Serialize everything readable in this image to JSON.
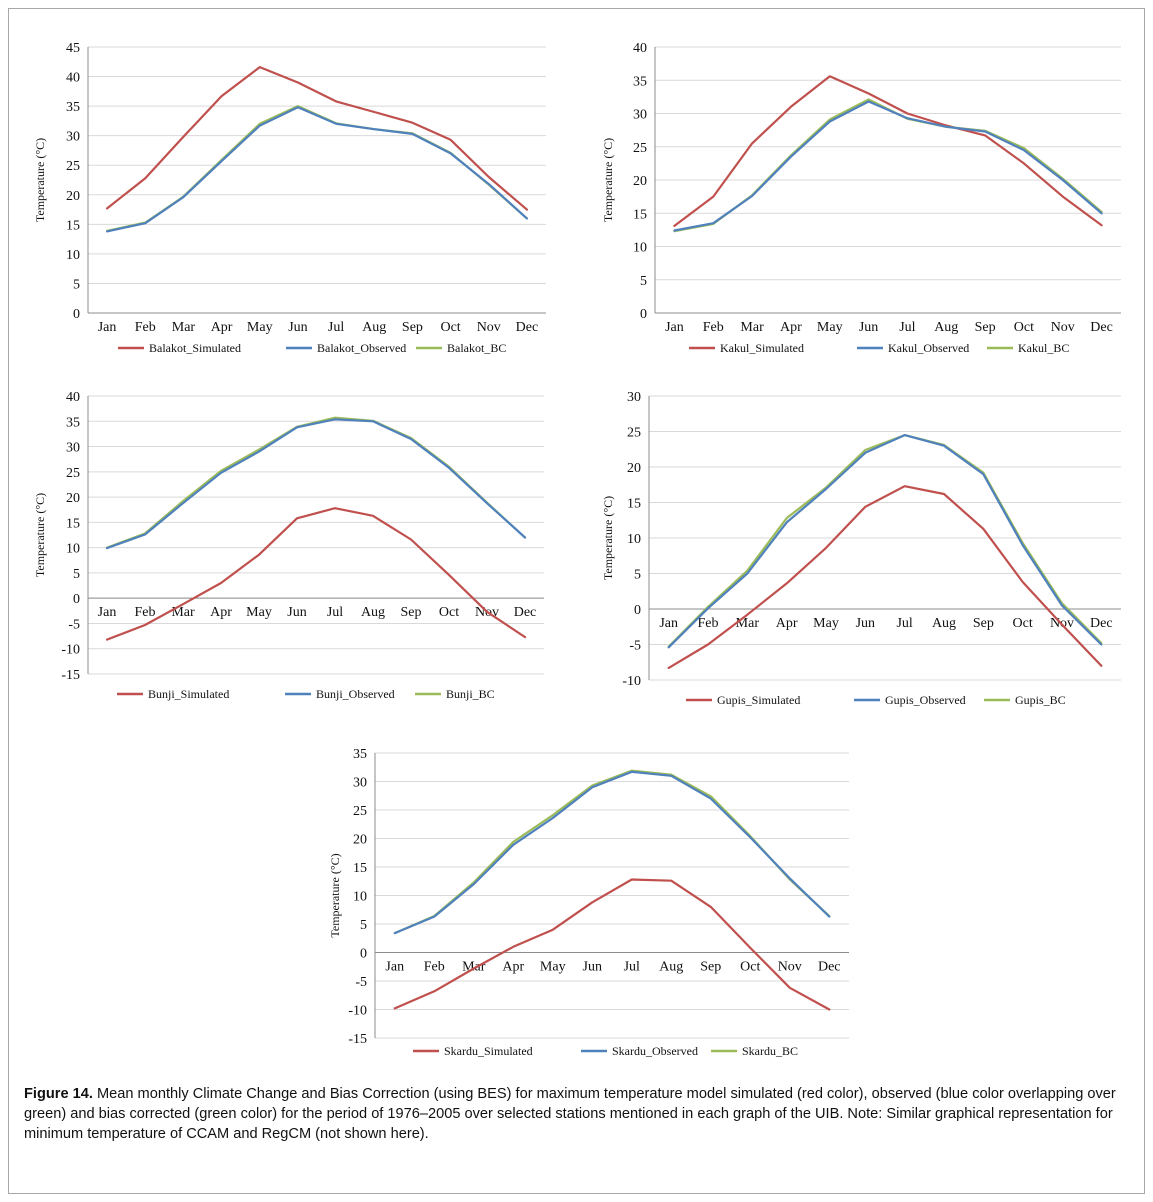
{
  "caption": {
    "label": "Figure 14.",
    "text": "Mean monthly Climate Change and Bias Correction (using BES) for maximum temperature model simulated (red color), observed (blue color overlapping over green) and bias corrected (green color) for the period of 1976–2005 over selected stations mentioned in each graph of the UIB. Note: Similar graphical representation for minimum temperature of CCAM and RegCM (not shown here)."
  },
  "colors": {
    "simulated": "#c0504d",
    "observed": "#4f81bd",
    "bc": "#9bbb59",
    "grid": "#d9d9d9",
    "axis": "#8c8c8c"
  },
  "chart_data": [
    {
      "type": "line",
      "ylabel": "Temperature (°C)",
      "ylim": [
        0,
        45
      ],
      "ystep": 5,
      "categories": [
        "Jan",
        "Feb",
        "Mar",
        "Apr",
        "May",
        "Jun",
        "Jul",
        "Aug",
        "Sep",
        "Oct",
        "Nov",
        "Dec"
      ],
      "series": [
        {
          "name": "Balakot_Simulated",
          "color": "simulated",
          "values": [
            17.7,
            22.8,
            29.8,
            36.7,
            41.6,
            39.0,
            35.8,
            34.0,
            32.2,
            29.3,
            23.0,
            17.5
          ]
        },
        {
          "name": "Balakot_Observed",
          "color": "observed",
          "values": [
            13.8,
            15.2,
            19.6,
            25.7,
            31.7,
            34.8,
            32.0,
            31.1,
            30.3,
            27.0,
            21.8,
            16.0
          ]
        },
        {
          "name": "Balakot_BC",
          "color": "bc",
          "values": [
            13.9,
            15.3,
            19.7,
            25.9,
            32.0,
            35.0,
            32.1,
            31.1,
            30.4,
            27.1,
            21.7,
            16.0
          ]
        }
      ]
    },
    {
      "type": "line",
      "ylabel": "Temperature (°C)",
      "ylim": [
        0,
        40
      ],
      "ystep": 5,
      "categories": [
        "Jan",
        "Feb",
        "Mar",
        "Apr",
        "May",
        "Jun",
        "Jul",
        "Aug",
        "Sep",
        "Oct",
        "Nov",
        "Dec"
      ],
      "series": [
        {
          "name": "Kakul_Simulated",
          "color": "simulated",
          "values": [
            13.1,
            17.5,
            25.5,
            31.0,
            35.6,
            33.0,
            30.0,
            28.2,
            26.7,
            22.5,
            17.5,
            13.2
          ]
        },
        {
          "name": "Kakul_Observed",
          "color": "observed",
          "values": [
            12.4,
            13.5,
            17.6,
            23.5,
            28.8,
            31.8,
            29.3,
            28.0,
            27.3,
            24.5,
            20.0,
            15.0
          ]
        },
        {
          "name": "Kakul_BC",
          "color": "bc",
          "values": [
            12.3,
            13.4,
            17.7,
            23.7,
            29.1,
            32.1,
            29.2,
            28.0,
            27.4,
            24.8,
            20.2,
            15.2
          ]
        }
      ]
    },
    {
      "type": "line",
      "ylabel": "Temperature (°C)",
      "ylim": [
        -15,
        40
      ],
      "ystep": 5,
      "categories": [
        "Jan",
        "Feb",
        "Mar",
        "Apr",
        "May",
        "Jun",
        "Jul",
        "Aug",
        "Sep",
        "Oct",
        "Nov",
        "Dec"
      ],
      "series": [
        {
          "name": "Bunji_Simulated",
          "color": "simulated",
          "values": [
            -8.2,
            -5.3,
            -1.2,
            3.0,
            8.6,
            15.8,
            17.8,
            16.3,
            11.6,
            4.6,
            -2.7,
            -7.7
          ]
        },
        {
          "name": "Bunji_Observed",
          "color": "observed",
          "values": [
            9.9,
            12.6,
            18.8,
            24.8,
            29.0,
            33.8,
            35.4,
            35.0,
            31.5,
            25.8,
            18.8,
            12.0
          ]
        },
        {
          "name": "Bunji_BC",
          "color": "bc",
          "values": [
            10.0,
            12.8,
            19.2,
            25.2,
            29.4,
            33.9,
            35.7,
            35.1,
            31.7,
            26.0,
            18.9,
            12.0
          ]
        }
      ]
    },
    {
      "type": "line",
      "ylabel": "Temperature (°C)",
      "ylim": [
        -10,
        30
      ],
      "ystep": 5,
      "categories": [
        "Jan",
        "Feb",
        "Mar",
        "Apr",
        "May",
        "Jun",
        "Jul",
        "Aug",
        "Sep",
        "Oct",
        "Nov",
        "Dec"
      ],
      "series": [
        {
          "name": "Gupis_Simulated",
          "color": "simulated",
          "values": [
            -8.3,
            -5.0,
            -0.8,
            3.6,
            8.6,
            14.4,
            17.3,
            16.2,
            11.3,
            3.8,
            -2.2,
            -8.0
          ]
        },
        {
          "name": "Gupis_Observed",
          "color": "observed",
          "values": [
            -5.4,
            0.1,
            5.0,
            12.2,
            16.9,
            22.0,
            24.5,
            23.0,
            19.0,
            9.0,
            0.5,
            -5.0
          ]
        },
        {
          "name": "Gupis_BC",
          "color": "bc",
          "values": [
            -5.3,
            0.3,
            5.4,
            12.8,
            17.1,
            22.4,
            24.5,
            23.1,
            19.2,
            9.3,
            0.8,
            -4.8
          ]
        }
      ]
    },
    {
      "type": "line",
      "ylabel": "Temperature (°C)",
      "ylim": [
        -15,
        35
      ],
      "ystep": 5,
      "categories": [
        "Jan",
        "Feb",
        "Mar",
        "Apr",
        "May",
        "Jun",
        "Jul",
        "Aug",
        "Sep",
        "Oct",
        "Nov",
        "Dec"
      ],
      "series": [
        {
          "name": "Skardu_Simulated",
          "color": "simulated",
          "values": [
            -9.8,
            -6.8,
            -2.8,
            1.0,
            4.0,
            8.8,
            12.8,
            12.6,
            8.0,
            0.8,
            -6.2,
            -10.0
          ]
        },
        {
          "name": "Skardu_Observed",
          "color": "observed",
          "values": [
            3.4,
            6.3,
            12.0,
            18.9,
            23.6,
            29.0,
            31.7,
            31.0,
            27.0,
            20.2,
            13.0,
            6.3
          ]
        },
        {
          "name": "Skardu_BC",
          "color": "bc",
          "values": [
            3.4,
            6.4,
            12.3,
            19.4,
            24.1,
            29.3,
            31.9,
            31.2,
            27.4,
            20.4,
            12.8,
            6.4
          ]
        }
      ]
    }
  ]
}
